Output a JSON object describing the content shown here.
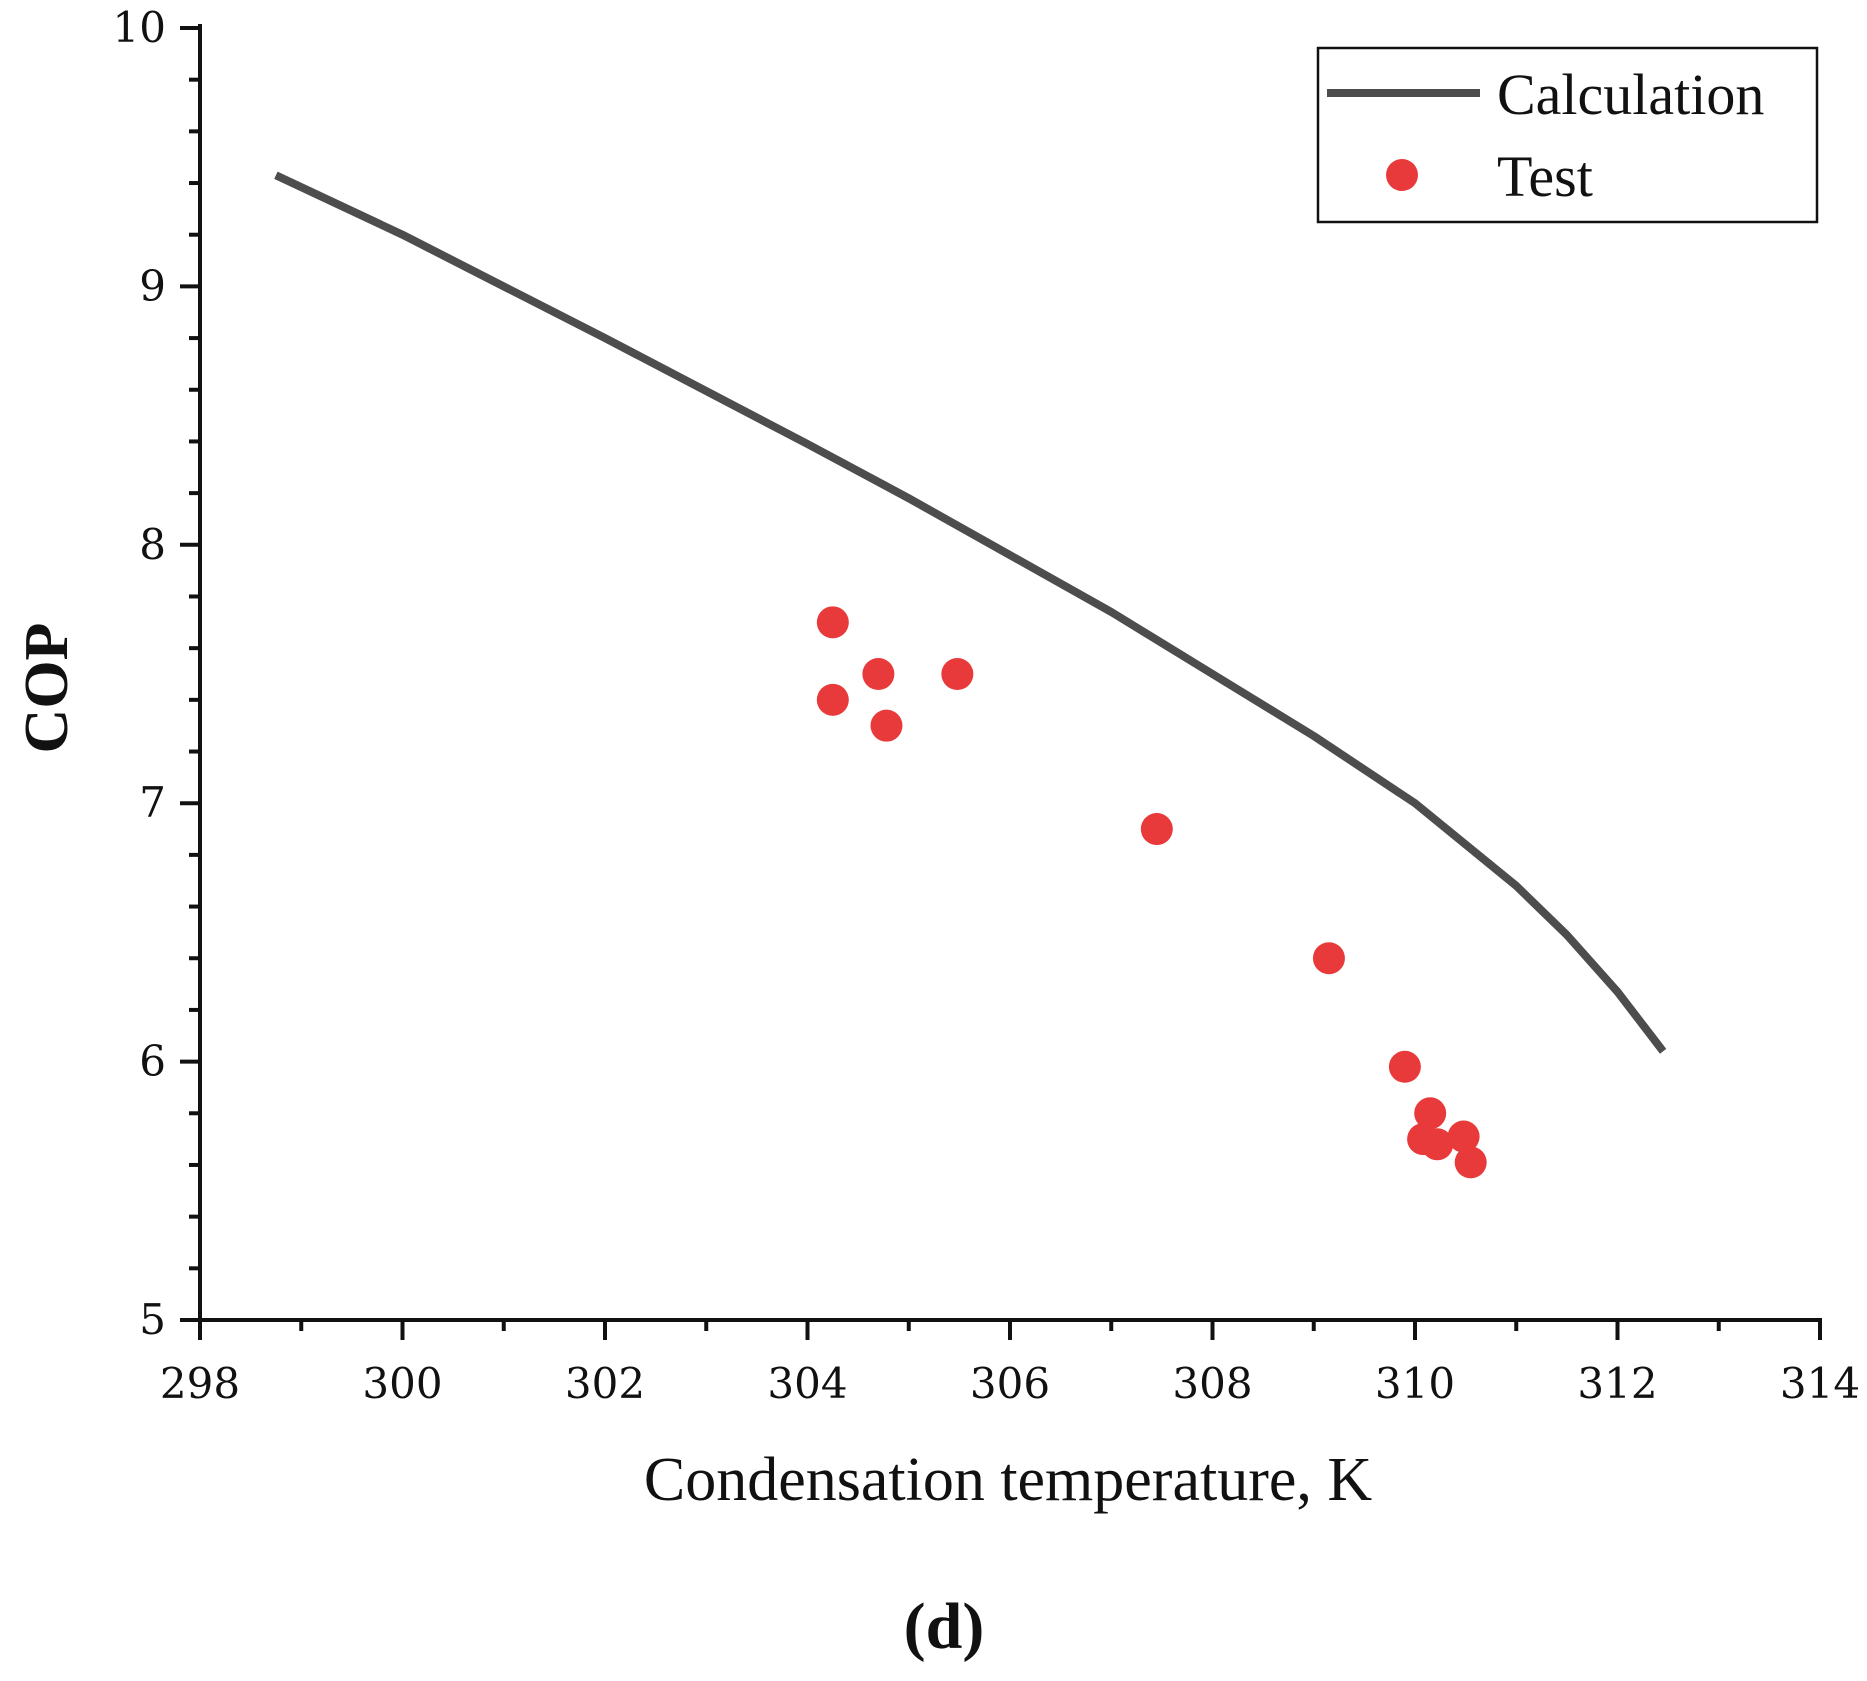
{
  "chart_data": {
    "type": "scatter",
    "title": "",
    "panel_label": "(d)",
    "xlabel": "Condensation temperature, K",
    "ylabel": "COP",
    "xlim": [
      298,
      314
    ],
    "ylim": [
      5,
      10
    ],
    "x_ticks": [
      "298",
      "300",
      "302",
      "304",
      "306",
      "308",
      "310",
      "312",
      "314"
    ],
    "y_ticks": [
      "5",
      "6",
      "7",
      "8",
      "9",
      "10"
    ],
    "legend_position": "top-right",
    "series": [
      {
        "name": "Calculation",
        "kind": "line",
        "color": "#4d4d4d",
        "x": [
          298.75,
          300,
          302,
          304,
          305,
          306,
          307,
          308,
          309,
          310,
          311,
          311.5,
          312,
          312.45
        ],
        "y": [
          9.43,
          9.2,
          8.8,
          8.39,
          8.18,
          7.96,
          7.74,
          7.5,
          7.26,
          7.0,
          6.68,
          6.49,
          6.27,
          6.04
        ]
      },
      {
        "name": "Test",
        "kind": "scatter",
        "color": "#e83a3a",
        "x": [
          304.25,
          304.25,
          304.7,
          304.78,
          305.48,
          307.45,
          309.15,
          309.9,
          310.15,
          310.08,
          310.22,
          310.48,
          310.55
        ],
        "y": [
          7.7,
          7.4,
          7.5,
          7.3,
          7.5,
          6.9,
          6.4,
          5.98,
          5.8,
          5.7,
          5.68,
          5.71,
          5.61
        ]
      }
    ]
  }
}
